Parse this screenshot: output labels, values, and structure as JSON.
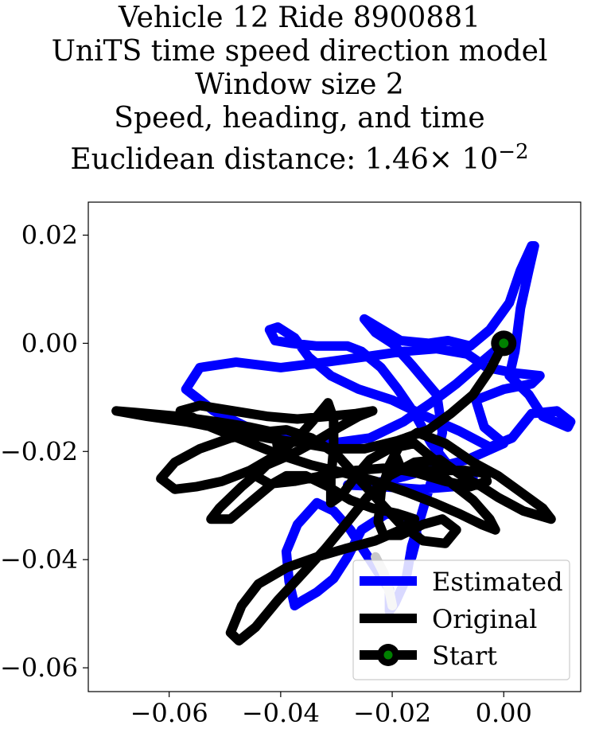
{
  "chart_data": {
    "type": "line",
    "title_lines": [
      "Vehicle 12 Ride 8900881",
      "UniTS time speed direction model",
      "Window size 2",
      "Speed, heading, and time"
    ],
    "title_distance_prefix": "Euclidean distance: ",
    "title_distance_mantissa": "1.46",
    "title_distance_times": "× 10",
    "title_distance_exponent": "−2",
    "xlabel": "",
    "ylabel": "",
    "xlim": [
      -0.0745,
      0.0138
    ],
    "ylim": [
      -0.0644,
      0.0261
    ],
    "x_ticks": [
      -0.06,
      -0.04,
      -0.02,
      0.0
    ],
    "x_tick_labels": [
      "−0.06",
      "−0.04",
      "−0.02",
      "0.00"
    ],
    "y_ticks": [
      0.02,
      0.0,
      -0.02,
      -0.04,
      -0.06
    ],
    "y_tick_labels": [
      "0.02",
      "0.00",
      "−0.02",
      "−0.04",
      "−0.06"
    ],
    "grid": false,
    "legend_position": "bottom-right",
    "legend": [
      {
        "label": "Estimated",
        "color": "#0000ff"
      },
      {
        "label": "Original",
        "color": "#000000"
      },
      {
        "label": "Start",
        "color": "#000000",
        "marker_color": "#008000"
      }
    ],
    "series": [
      {
        "name": "Estimated",
        "color": "#0000ff",
        "points": [
          [
            0.0,
            0.0
          ],
          [
            -0.004,
            -0.0035
          ],
          [
            -0.0085,
            -0.0075
          ],
          [
            -0.013,
            -0.011
          ],
          [
            -0.018,
            -0.0145
          ],
          [
            -0.024,
            -0.0175
          ],
          [
            -0.031,
            -0.0185
          ],
          [
            -0.039,
            -0.0178
          ],
          [
            -0.046,
            -0.0155
          ],
          [
            -0.052,
            -0.0125
          ],
          [
            -0.057,
            -0.0085
          ],
          [
            -0.0545,
            -0.0045
          ],
          [
            -0.048,
            -0.0035
          ],
          [
            -0.04,
            -0.0045
          ],
          [
            -0.032,
            -0.0035
          ],
          [
            -0.025,
            -0.0025
          ],
          [
            -0.018,
            -0.0015
          ],
          [
            -0.012,
            -0.001
          ],
          [
            -0.0065,
            -0.002
          ],
          [
            -0.003,
            -0.0045
          ],
          [
            0.002,
            -0.0055
          ],
          [
            0.0065,
            -0.006
          ],
          [
            0.005,
            -0.0075
          ],
          [
            0.0,
            -0.0085
          ],
          [
            -0.005,
            -0.0105
          ],
          [
            -0.0035,
            -0.0155
          ],
          [
            0.0,
            -0.0185
          ],
          [
            -0.0065,
            -0.0215
          ],
          [
            -0.014,
            -0.0235
          ],
          [
            -0.021,
            -0.0255
          ],
          [
            -0.028,
            -0.0262
          ],
          [
            -0.022,
            -0.0265
          ],
          [
            -0.015,
            -0.027
          ],
          [
            -0.009,
            -0.0265
          ],
          [
            -0.0055,
            -0.025
          ],
          [
            -0.01,
            -0.0225
          ],
          [
            -0.013,
            -0.0185
          ],
          [
            -0.016,
            -0.013
          ],
          [
            -0.019,
            -0.0085
          ],
          [
            -0.022,
            -0.0045
          ],
          [
            -0.0255,
            -0.0015
          ],
          [
            -0.028,
            -0.0005
          ],
          [
            -0.0335,
            -0.0005
          ],
          [
            -0.038,
            0.0
          ],
          [
            -0.041,
            0.0005
          ],
          [
            -0.042,
            0.0025
          ],
          [
            -0.0405,
            0.003
          ],
          [
            -0.0375,
            0.001
          ],
          [
            -0.035,
            -0.0025
          ],
          [
            -0.031,
            -0.006
          ],
          [
            -0.026,
            -0.0085
          ],
          [
            -0.02,
            -0.0105
          ],
          [
            -0.014,
            -0.0135
          ],
          [
            -0.008,
            -0.0162
          ],
          [
            -0.0025,
            -0.0192
          ],
          [
            0.0015,
            -0.0175
          ],
          [
            0.005,
            -0.013
          ],
          [
            0.0095,
            -0.0125
          ],
          [
            0.012,
            -0.0145
          ],
          [
            0.0115,
            -0.0155
          ],
          [
            0.007,
            -0.0135
          ],
          [
            0.0045,
            -0.0095
          ],
          [
            0.001,
            -0.006
          ],
          [
            0.002,
            -0.0015
          ],
          [
            0.003,
            0.0065
          ],
          [
            0.0045,
            0.0135
          ],
          [
            0.0055,
            0.018
          ],
          [
            0.005,
            0.018
          ],
          [
            0.003,
            0.0135
          ],
          [
            0.001,
            0.0075
          ],
          [
            -0.0025,
            0.0025
          ],
          [
            -0.006,
            -0.0005
          ],
          [
            -0.01,
            0.0005
          ],
          [
            -0.0135,
            0.0
          ],
          [
            -0.0185,
            0.0005
          ],
          [
            -0.025,
            0.0045
          ],
          [
            -0.023,
            0.002
          ],
          [
            -0.02,
            0.0
          ],
          [
            -0.0165,
            -0.004
          ],
          [
            -0.012,
            -0.0095
          ],
          [
            -0.011,
            -0.0165
          ],
          [
            -0.013,
            -0.0255
          ],
          [
            -0.015,
            -0.0325
          ],
          [
            -0.0165,
            -0.0375
          ],
          [
            -0.0175,
            -0.0435
          ],
          [
            -0.0195,
            -0.048
          ],
          [
            -0.0205,
            -0.0495
          ],
          [
            -0.0205,
            -0.047
          ],
          [
            -0.0205,
            -0.0455
          ],
          [
            -0.0215,
            -0.044
          ],
          [
            -0.024,
            -0.04
          ],
          [
            -0.0275,
            -0.0345
          ],
          [
            -0.0305,
            -0.031
          ],
          [
            -0.0335,
            -0.0295
          ],
          [
            -0.037,
            -0.0335
          ],
          [
            -0.039,
            -0.0385
          ],
          [
            -0.0385,
            -0.044
          ],
          [
            -0.0375,
            -0.0485
          ],
          [
            -0.036,
            -0.0475
          ],
          [
            -0.0335,
            -0.046
          ],
          [
            -0.0305,
            -0.0435
          ],
          [
            -0.028,
            -0.0395
          ],
          [
            -0.0255,
            -0.0345
          ],
          [
            -0.021,
            -0.0315
          ],
          [
            -0.0175,
            -0.032
          ],
          [
            -0.0155,
            -0.0355
          ],
          [
            -0.0165,
            -0.0395
          ]
        ]
      },
      {
        "name": "Original",
        "color": "#000000",
        "points": [
          [
            0.0,
            0.0
          ],
          [
            -0.0025,
            -0.005
          ],
          [
            -0.0055,
            -0.0095
          ],
          [
            -0.0095,
            -0.013
          ],
          [
            -0.0135,
            -0.016
          ],
          [
            -0.019,
            -0.018
          ],
          [
            -0.025,
            -0.0195
          ],
          [
            -0.0305,
            -0.0195
          ],
          [
            -0.036,
            -0.0185
          ],
          [
            -0.0425,
            -0.0175
          ],
          [
            -0.0495,
            -0.016
          ],
          [
            -0.057,
            -0.0145
          ],
          [
            -0.064,
            -0.0135
          ],
          [
            -0.0695,
            -0.0125
          ],
          [
            -0.066,
            -0.0128
          ],
          [
            -0.0585,
            -0.0135
          ],
          [
            -0.0515,
            -0.0145
          ],
          [
            -0.0455,
            -0.0155
          ],
          [
            -0.041,
            -0.0165
          ],
          [
            -0.0405,
            -0.0195
          ],
          [
            -0.043,
            -0.023
          ],
          [
            -0.047,
            -0.0265
          ],
          [
            -0.051,
            -0.0305
          ],
          [
            -0.0525,
            -0.0325
          ],
          [
            -0.049,
            -0.0325
          ],
          [
            -0.045,
            -0.029
          ],
          [
            -0.0415,
            -0.026
          ],
          [
            -0.039,
            -0.0245
          ],
          [
            -0.0355,
            -0.0245
          ],
          [
            -0.0315,
            -0.0265
          ],
          [
            -0.0275,
            -0.029
          ],
          [
            -0.0235,
            -0.0305
          ],
          [
            -0.019,
            -0.0315
          ],
          [
            -0.016,
            -0.0325
          ],
          [
            -0.0185,
            -0.0345
          ],
          [
            -0.023,
            -0.0365
          ],
          [
            -0.0285,
            -0.038
          ],
          [
            -0.0335,
            -0.0395
          ],
          [
            -0.039,
            -0.0415
          ],
          [
            -0.044,
            -0.0445
          ],
          [
            -0.047,
            -0.0485
          ],
          [
            -0.049,
            -0.0535
          ],
          [
            -0.0475,
            -0.055
          ],
          [
            -0.0445,
            -0.0525
          ],
          [
            -0.0405,
            -0.0475
          ],
          [
            -0.036,
            -0.0425
          ],
          [
            -0.032,
            -0.038
          ],
          [
            -0.028,
            -0.033
          ],
          [
            -0.0245,
            -0.0285
          ],
          [
            -0.0205,
            -0.0245
          ],
          [
            -0.016,
            -0.022
          ],
          [
            -0.0115,
            -0.0215
          ],
          [
            -0.0075,
            -0.0245
          ],
          [
            -0.004,
            -0.0265
          ],
          [
            -0.001,
            -0.0285
          ],
          [
            0.0035,
            -0.031
          ],
          [
            0.0085,
            -0.0325
          ],
          [
            0.007,
            -0.0305
          ],
          [
            0.003,
            -0.0275
          ],
          [
            -0.001,
            -0.0245
          ],
          [
            -0.0055,
            -0.022
          ],
          [
            -0.0105,
            -0.0185
          ],
          [
            -0.0155,
            -0.0165
          ],
          [
            -0.0185,
            -0.0185
          ],
          [
            -0.0205,
            -0.0225
          ],
          [
            -0.022,
            -0.0275
          ],
          [
            -0.0225,
            -0.033
          ],
          [
            -0.0215,
            -0.0355
          ],
          [
            -0.0185,
            -0.0355
          ],
          [
            -0.0145,
            -0.0335
          ],
          [
            -0.011,
            -0.0325
          ],
          [
            -0.0085,
            -0.0345
          ],
          [
            -0.0105,
            -0.037
          ],
          [
            -0.0145,
            -0.0365
          ],
          [
            -0.0185,
            -0.0335
          ],
          [
            -0.0225,
            -0.029
          ],
          [
            -0.0265,
            -0.0245
          ],
          [
            -0.03,
            -0.0205
          ],
          [
            -0.0345,
            -0.0175
          ],
          [
            -0.039,
            -0.016
          ],
          [
            -0.044,
            -0.0165
          ],
          [
            -0.049,
            -0.0175
          ],
          [
            -0.0545,
            -0.0195
          ],
          [
            -0.059,
            -0.022
          ],
          [
            -0.0615,
            -0.025
          ],
          [
            -0.059,
            -0.027
          ],
          [
            -0.055,
            -0.0265
          ],
          [
            -0.0505,
            -0.0255
          ],
          [
            -0.0455,
            -0.0235
          ],
          [
            -0.0405,
            -0.0205
          ],
          [
            -0.0365,
            -0.017
          ],
          [
            -0.0335,
            -0.0135
          ],
          [
            -0.0315,
            -0.011
          ],
          [
            -0.0305,
            -0.014
          ],
          [
            -0.0305,
            -0.0195
          ],
          [
            -0.031,
            -0.025
          ],
          [
            -0.031,
            -0.0295
          ],
          [
            -0.029,
            -0.028
          ],
          [
            -0.0265,
            -0.0245
          ],
          [
            -0.024,
            -0.0215
          ],
          [
            -0.0205,
            -0.0195
          ],
          [
            -0.016,
            -0.0185
          ],
          [
            -0.0125,
            -0.0215
          ],
          [
            -0.0105,
            -0.025
          ],
          [
            -0.008,
            -0.027
          ],
          [
            -0.0055,
            -0.029
          ],
          [
            -0.0025,
            -0.0325
          ],
          [
            -0.0015,
            -0.0345
          ],
          [
            -0.004,
            -0.0335
          ],
          [
            -0.008,
            -0.0315
          ],
          [
            -0.0125,
            -0.0295
          ],
          [
            -0.0175,
            -0.0275
          ],
          [
            -0.023,
            -0.0255
          ],
          [
            -0.0285,
            -0.024
          ],
          [
            -0.0345,
            -0.0225
          ],
          [
            -0.0405,
            -0.0205
          ],
          [
            -0.0465,
            -0.018
          ],
          [
            -0.0525,
            -0.0155
          ],
          [
            -0.058,
            -0.0125
          ],
          [
            -0.0545,
            -0.0115
          ],
          [
            -0.0485,
            -0.0125
          ],
          [
            -0.0425,
            -0.0135
          ],
          [
            -0.037,
            -0.014
          ],
          [
            -0.0315,
            -0.0135
          ],
          [
            -0.0265,
            -0.013
          ],
          [
            -0.0235,
            -0.0125
          ],
          [
            -0.026,
            -0.0135
          ],
          [
            -0.0295,
            -0.0155
          ],
          [
            -0.0335,
            -0.018
          ],
          [
            -0.038,
            -0.0205
          ],
          [
            -0.0425,
            -0.0225
          ],
          [
            -0.0445,
            -0.0245
          ],
          [
            -0.042,
            -0.026
          ],
          [
            -0.0375,
            -0.0255
          ],
          [
            -0.0325,
            -0.0245
          ],
          [
            -0.0265,
            -0.0235
          ],
          [
            -0.0205,
            -0.023
          ],
          [
            -0.0155,
            -0.024
          ],
          [
            -0.0105,
            -0.0255
          ],
          [
            -0.006,
            -0.0265
          ],
          [
            -0.003,
            -0.0255
          ],
          [
            -0.0035,
            -0.024
          ],
          [
            -0.007,
            -0.0235
          ],
          [
            -0.011,
            -0.0235
          ],
          [
            -0.015,
            -0.0235
          ],
          [
            -0.0185,
            -0.023
          ],
          [
            -0.0195,
            -0.0205
          ],
          [
            -0.0185,
            -0.0185
          ]
        ]
      },
      {
        "name": "Estimated (tail)",
        "color": "#c8c8c8",
        "points": [
          [
            -0.023,
            -0.0395
          ],
          [
            -0.0215,
            -0.0425
          ],
          [
            -0.0205,
            -0.046
          ],
          [
            -0.02,
            -0.0485
          ]
        ]
      }
    ],
    "start_point": [
      0.0,
      0.0
    ]
  }
}
